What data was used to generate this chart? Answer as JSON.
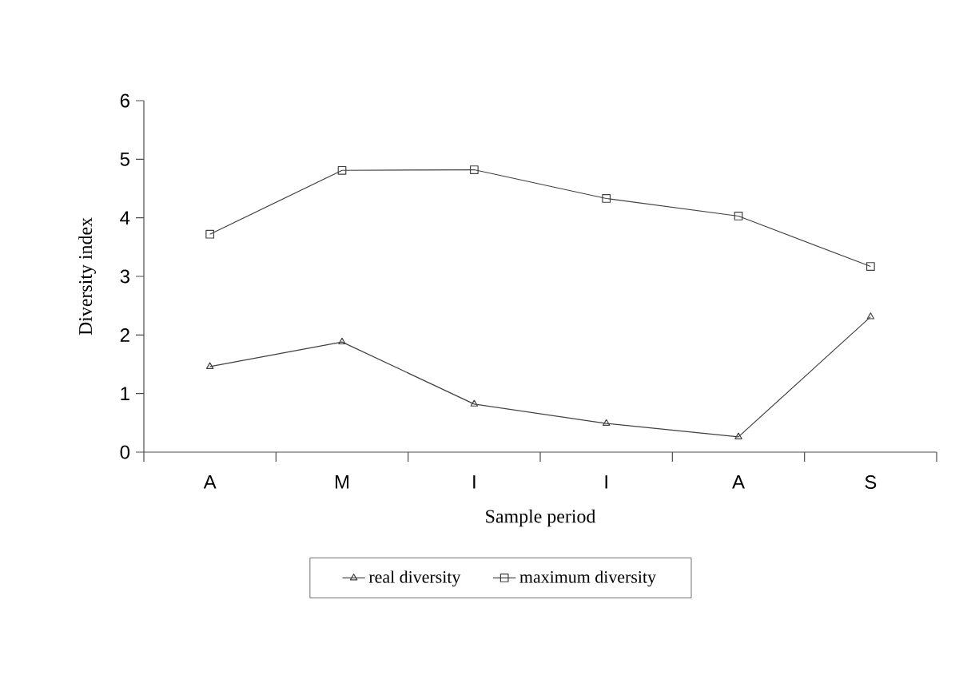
{
  "chart_data": {
    "type": "line",
    "xlabel": "Sample period",
    "ylabel": "Diversity index",
    "categories": [
      "A",
      "M",
      "I",
      "I",
      "A",
      "S"
    ],
    "series": [
      {
        "name": "real diversity",
        "color": "#404040",
        "marker": "triangle",
        "values": [
          1.46,
          1.88,
          0.82,
          0.49,
          0.26,
          2.31
        ]
      },
      {
        "name": "maximum diversity",
        "color": "#404040",
        "marker": "square",
        "values": [
          3.72,
          4.81,
          4.82,
          4.33,
          4.03,
          3.17
        ]
      }
    ],
    "ylim": [
      0,
      6
    ],
    "yticks": [
      0,
      1,
      2,
      3,
      4,
      5,
      6
    ],
    "legend": "bottom",
    "grid": false,
    "line_style": "solid"
  }
}
